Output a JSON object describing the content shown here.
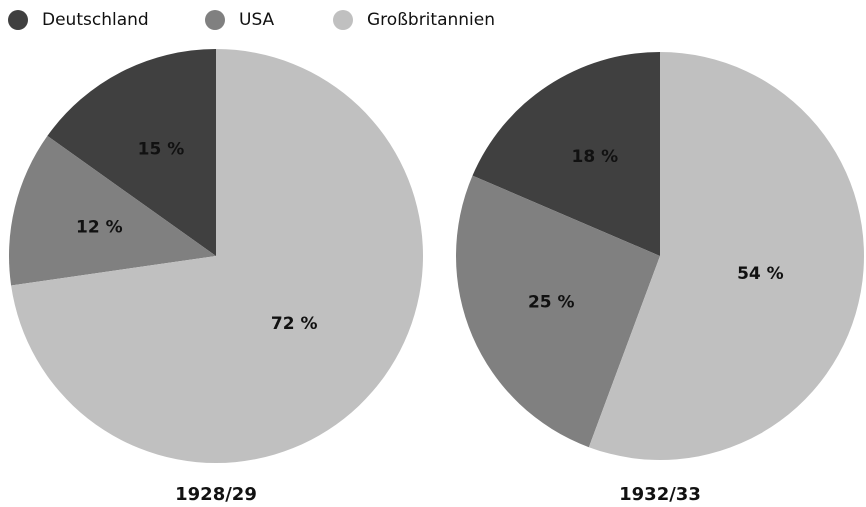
{
  "chart_data": [
    {
      "type": "pie",
      "title": "1928/29",
      "categories": [
        "Deutschland",
        "USA",
        "Großbritannien"
      ],
      "values": [
        15,
        12,
        72
      ],
      "value_labels": [
        "15 %",
        "12 %",
        "72 %"
      ],
      "colors": [
        "#404040",
        "#808080",
        "#c0c0c0"
      ]
    },
    {
      "type": "pie",
      "title": "1932/33",
      "categories": [
        "Deutschland",
        "USA",
        "Großbritannien"
      ],
      "values": [
        18,
        25,
        54
      ],
      "value_labels": [
        "18 %",
        "25 %",
        "54 %"
      ],
      "colors": [
        "#404040",
        "#808080",
        "#c0c0c0"
      ]
    }
  ]
}
